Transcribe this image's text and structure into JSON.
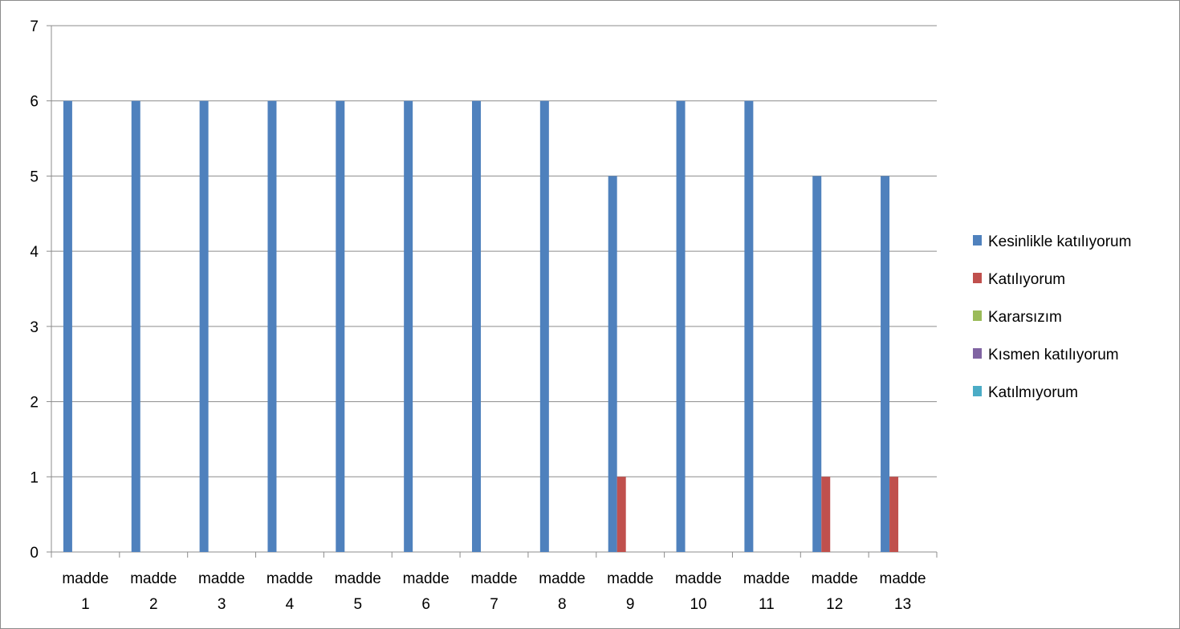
{
  "chart_data": {
    "type": "bar",
    "categories": [
      [
        "madde",
        "1"
      ],
      [
        "madde",
        "2"
      ],
      [
        "madde",
        "3"
      ],
      [
        "madde",
        "4"
      ],
      [
        "madde",
        "5"
      ],
      [
        "madde",
        "6"
      ],
      [
        "madde",
        "7"
      ],
      [
        "madde",
        "8"
      ],
      [
        "madde",
        "9"
      ],
      [
        "madde",
        "10"
      ],
      [
        "madde",
        "11"
      ],
      [
        "madde",
        "12"
      ],
      [
        "madde",
        "13"
      ]
    ],
    "series": [
      {
        "name": "Kesinlikle katılıyorum",
        "color": "#4F81BD",
        "values": [
          6,
          6,
          6,
          6,
          6,
          6,
          6,
          6,
          5,
          6,
          6,
          5,
          5
        ]
      },
      {
        "name": "Katılıyorum",
        "color": "#C0504D",
        "values": [
          0,
          0,
          0,
          0,
          0,
          0,
          0,
          0,
          1,
          0,
          0,
          1,
          1
        ]
      },
      {
        "name": "Kararsızım",
        "color": "#9BBB59",
        "values": [
          0,
          0,
          0,
          0,
          0,
          0,
          0,
          0,
          0,
          0,
          0,
          0,
          0
        ]
      },
      {
        "name": "Kısmen katılıyorum",
        "color": "#8064A2",
        "values": [
          0,
          0,
          0,
          0,
          0,
          0,
          0,
          0,
          0,
          0,
          0,
          0,
          0
        ]
      },
      {
        "name": "Katılmıyorum",
        "color": "#4BACC6",
        "values": [
          0,
          0,
          0,
          0,
          0,
          0,
          0,
          0,
          0,
          0,
          0,
          0,
          0
        ]
      }
    ],
    "ylim": [
      0,
      7
    ],
    "yticks": [
      "0",
      "1",
      "2",
      "3",
      "4",
      "5",
      "6",
      "7"
    ],
    "grid": true,
    "legend_position": "right"
  }
}
